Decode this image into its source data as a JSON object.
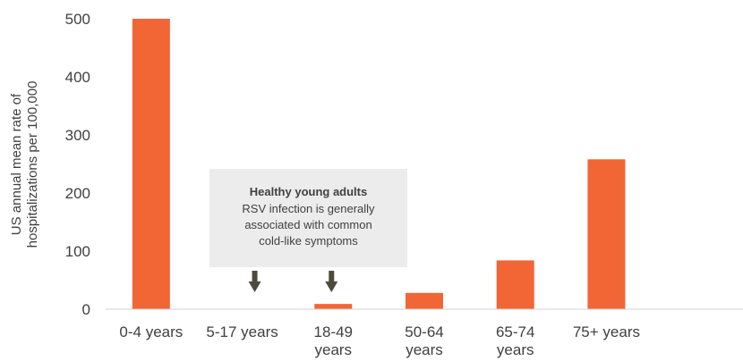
{
  "chart_data": {
    "type": "bar",
    "categories": [
      "0-4 years",
      "5-17 years",
      "18-49 years",
      "50-64 years",
      "65-74 years",
      "75+ years"
    ],
    "category_lines": [
      [
        "0-4 years"
      ],
      [
        "5-17 years"
      ],
      [
        "18-49",
        "years"
      ],
      [
        "50-64",
        "years"
      ],
      [
        "65-74",
        "years"
      ],
      [
        "75+ years"
      ]
    ],
    "values": [
      500,
      0,
      9,
      28,
      84,
      258
    ],
    "ylabel_lines": [
      "US annual mean rate of",
      "hospitalizations per 100,000"
    ],
    "ylim": [
      0,
      500
    ],
    "yticks": [
      0,
      100,
      200,
      300,
      400,
      500
    ],
    "grid": false,
    "bar_color": "#f26535",
    "annotation": {
      "title": "Healthy young adults",
      "lines": [
        "RSV infection is generally",
        "associated with common",
        "cold-like symptoms"
      ],
      "box_color": "#ececec",
      "arrow_color": "#4d4a3f",
      "points_to": [
        "5-17 years",
        "18-49 years"
      ]
    }
  }
}
